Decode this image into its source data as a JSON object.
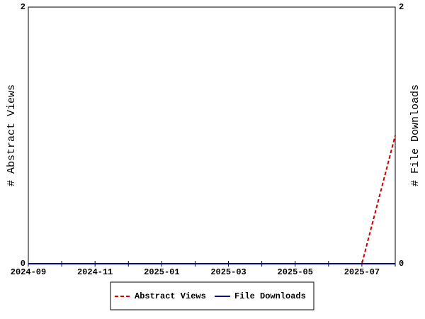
{
  "chart_data": {
    "type": "line",
    "categories": [
      "2024-09",
      null,
      "2024-11",
      null,
      "2025-01",
      null,
      "2025-03",
      null,
      "2025-05",
      null,
      "2025-07",
      null
    ],
    "series": [
      {
        "name": "Abstract Views",
        "color": "#cc0000",
        "dash": true,
        "axis": "y",
        "values": [
          0,
          0,
          0,
          0,
          0,
          0,
          0,
          0,
          0,
          0,
          0,
          1
        ]
      },
      {
        "name": "File Downloads",
        "color": "#000099",
        "dash": false,
        "axis": "y2",
        "values": [
          0,
          0,
          0,
          0,
          0,
          0,
          0,
          0,
          0,
          0,
          0,
          0
        ]
      }
    ],
    "ylabel": "# Abstract Views",
    "y2label": "# File Downloads",
    "ylim": [
      0,
      2
    ],
    "yticks": [
      0,
      2
    ],
    "y2lim": [
      0,
      2
    ],
    "y2ticks": [
      0,
      2
    ],
    "grid": false,
    "legend": "bottom"
  }
}
